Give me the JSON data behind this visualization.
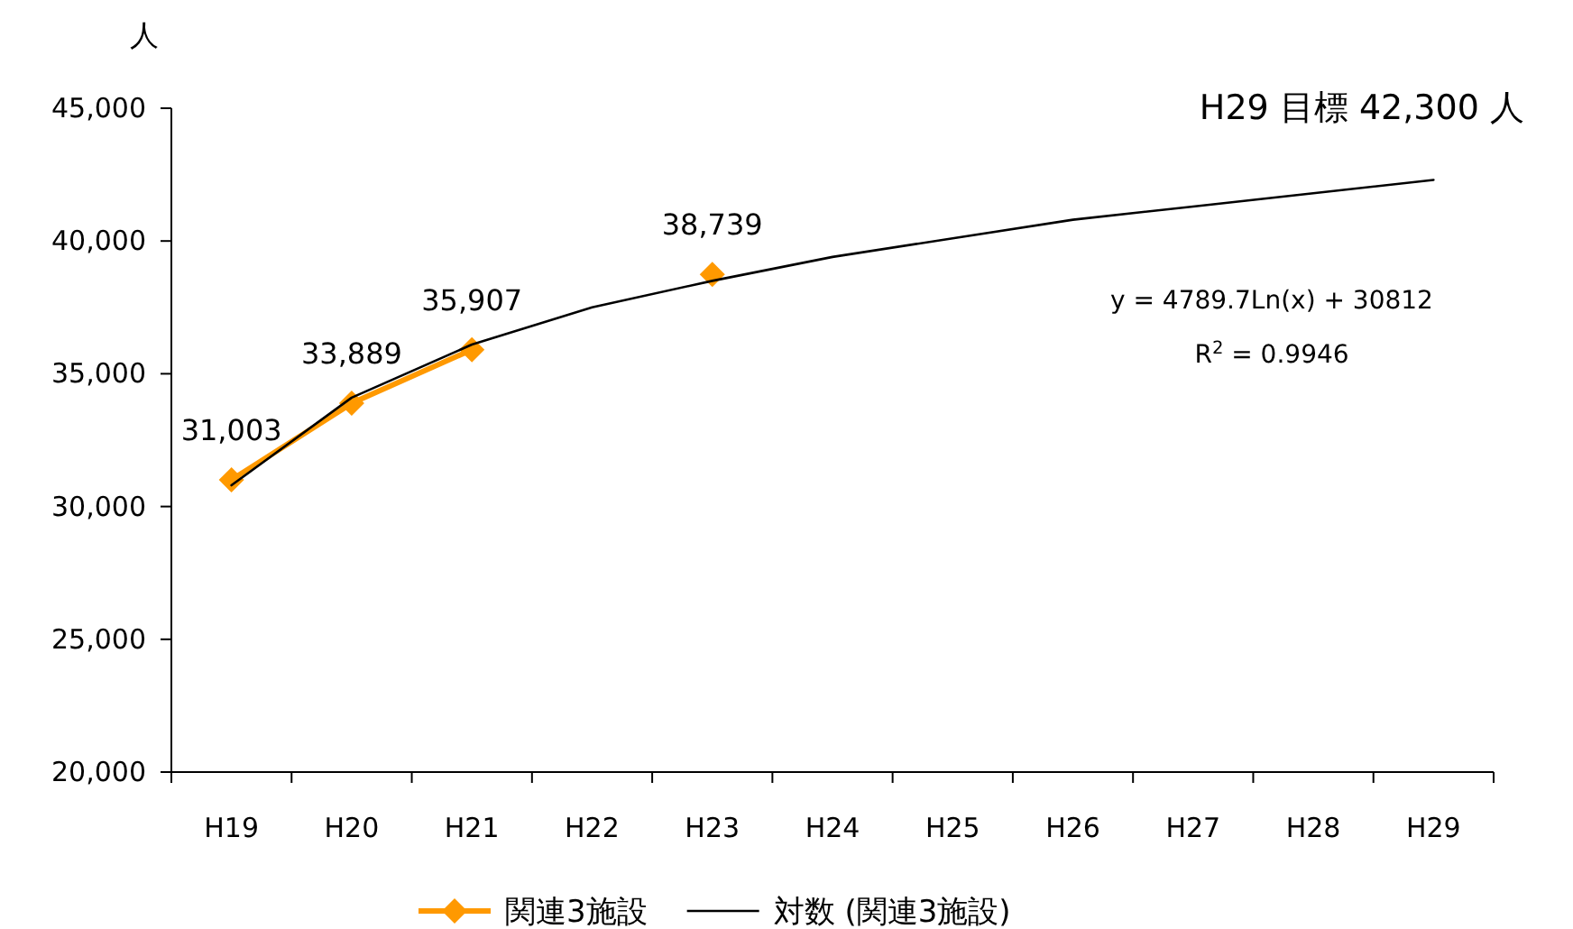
{
  "chart_data": {
    "type": "line",
    "ylabel": "人",
    "categories": [
      "H19",
      "H20",
      "H21",
      "H22",
      "H23",
      "H24",
      "H25",
      "H26",
      "H27",
      "H28",
      "H29"
    ],
    "ylim": [
      20000,
      45000
    ],
    "yticks": [
      {
        "value": 20000,
        "label": "20,000"
      },
      {
        "value": 25000,
        "label": "25,000"
      },
      {
        "value": 30000,
        "label": "30,000"
      },
      {
        "value": 35000,
        "label": "35,000"
      },
      {
        "value": 40000,
        "label": "40,000"
      },
      {
        "value": 45000,
        "label": "45,000"
      }
    ],
    "series": [
      {
        "name": "関連3施設",
        "color": "#ff9900",
        "marker": "diamond",
        "values": [
          31003,
          33889,
          35907,
          null,
          38739,
          null,
          null,
          null,
          null,
          null,
          null
        ],
        "value_labels": [
          "31,003",
          "33,889",
          "35,907",
          null,
          "38,739",
          null,
          null,
          null,
          null,
          null,
          null
        ]
      },
      {
        "name": "対数 (関連3施設)",
        "color": "#000000",
        "marker": "none",
        "values": [
          30800,
          34100,
          36100,
          37500,
          38500,
          39400,
          40100,
          40800,
          41300,
          41800,
          42300
        ]
      }
    ],
    "annotations": [
      "H29 目標 42,300 人",
      "y = 4789.7Ln(x) + 30812",
      "R$^{2}$ = 0.9946"
    ],
    "grid": false,
    "legend": "bottom"
  }
}
